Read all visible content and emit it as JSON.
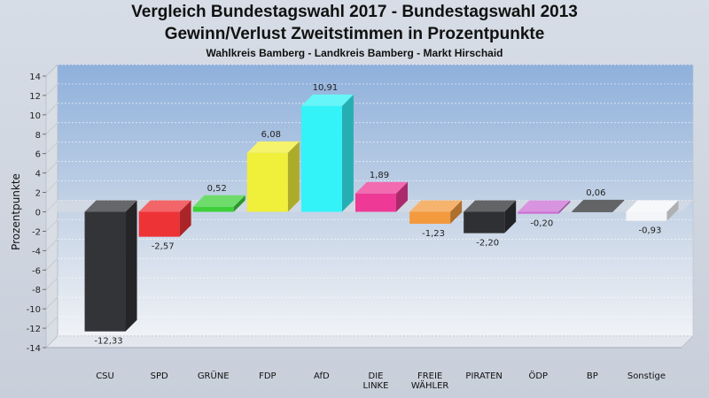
{
  "chart_data": {
    "type": "bar",
    "title": "Vergleich Bundestagswahl 2017 - Bundestagswahl 2013",
    "subtitle_line": "Gewinn/Verlust Zweitstimmen in Prozentpunkte",
    "subtitle": "Wahlkreis Bamberg - Landkreis Bamberg - Markt Hirschaid",
    "ylabel": "Prozentpunkte",
    "xlabel": "",
    "ylim": [
      -14,
      14
    ],
    "yticks": [
      14,
      12,
      10,
      8,
      6,
      4,
      2,
      0,
      -2,
      -4,
      -6,
      -8,
      -10,
      -12,
      -14
    ],
    "grid": true,
    "categories": [
      "CSU",
      "SPD",
      "GRÜNE",
      "FDP",
      "AfD",
      "DIE LINKE",
      "FREIE WÄHLER",
      "PIRATEN",
      "ÖDP",
      "BP",
      "Sonstige"
    ],
    "values": [
      -12.33,
      -2.57,
      0.52,
      6.08,
      10.91,
      1.89,
      -1.23,
      -2.2,
      -0.2,
      0.06,
      -0.93
    ],
    "value_labels": [
      "-12,33",
      "-2,57",
      "0,52",
      "6,08",
      "10,91",
      "1,89",
      "-1,23",
      "-2,20",
      "-0,20",
      "0,06",
      "-0,93"
    ],
    "colors": [
      "#333438",
      "#ee3337",
      "#3ed03a",
      "#f0ef3a",
      "#33f3f8",
      "#ee3a96",
      "#f39a3e",
      "#2f3033",
      "#cc70d4",
      "#2f3033",
      "#f4f5f8"
    ]
  }
}
